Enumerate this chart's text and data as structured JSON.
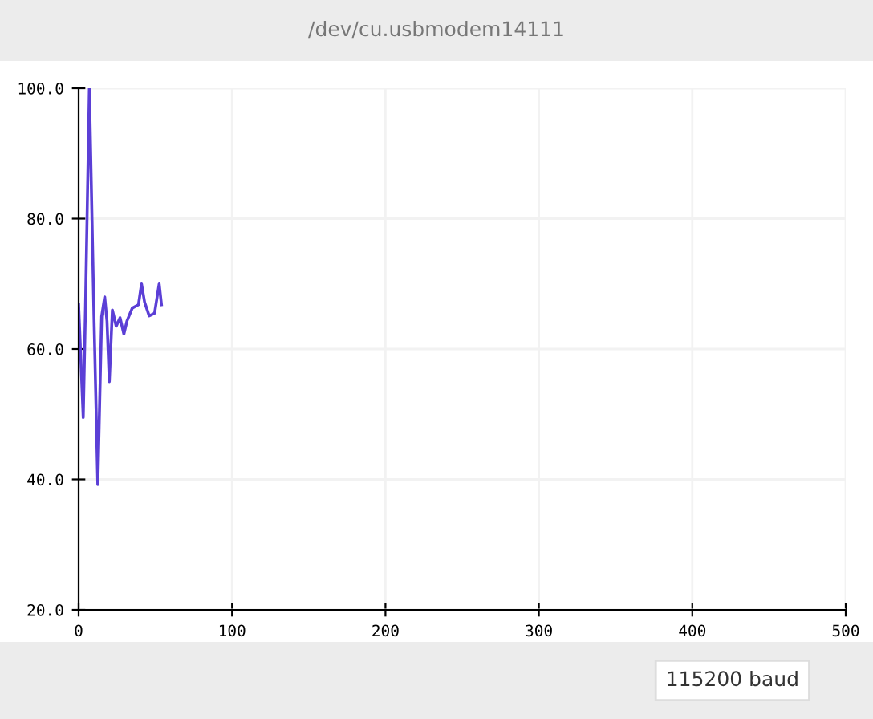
{
  "chart_data": {
    "type": "line",
    "title": "/dev/cu.usbmodem14111",
    "x": [
      0,
      3,
      4.5,
      7,
      10,
      12.5,
      15,
      17,
      18.5,
      20,
      22,
      24.5,
      27,
      29.5,
      31.5,
      35,
      39,
      41,
      43,
      46,
      49.5,
      52.5,
      54
    ],
    "series": [
      {
        "color": "#5b3fd6",
        "values": [
          66.8,
          49.5,
          66.8,
          100,
          65.1,
          39.2,
          65,
          68,
          64.3,
          55,
          66,
          63.5,
          64.8,
          62.3,
          64.3,
          66.3,
          66.8,
          70,
          67.2,
          65.1,
          65.5,
          70,
          66.8
        ]
      }
    ],
    "xlim": [
      0,
      500
    ],
    "xticks": [
      0,
      100,
      200,
      300,
      400,
      500
    ],
    "ylim": [
      20,
      100
    ],
    "yticks": [
      {
        "value": 20,
        "label": "20.0"
      },
      {
        "value": 40,
        "label": "40.0"
      },
      {
        "value": 60,
        "label": "60.0"
      },
      {
        "value": 80,
        "label": "80.0"
      },
      {
        "value": 100,
        "label": "100.0"
      }
    ],
    "grid": true,
    "marker": "none",
    "line_style": "solid",
    "annotations": [
      "115200 baud"
    ]
  }
}
